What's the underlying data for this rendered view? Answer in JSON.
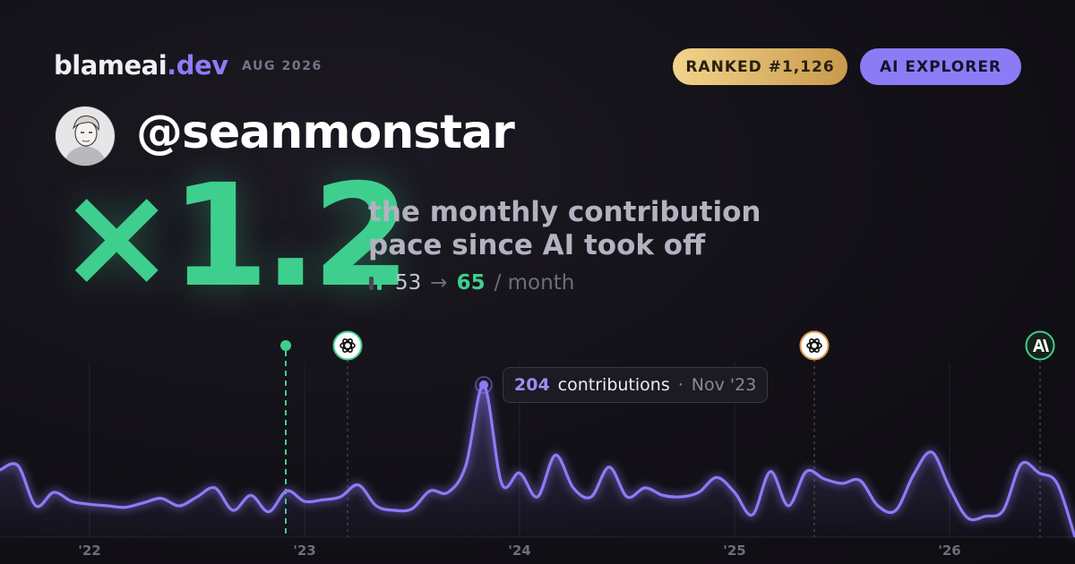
{
  "header": {
    "brand": "blameai",
    "brand_tld": ".dev",
    "period": "AUG 2026",
    "badges": [
      "RANKED #1,126",
      "AI EXPLORER"
    ]
  },
  "profile": {
    "username": "@seanmonstar"
  },
  "headline": {
    "multiplier": "×1.2",
    "description": [
      "the monthly contribution",
      "pace since AI took off"
    ],
    "pace": {
      "before": 53,
      "arrow": "→",
      "after": 65,
      "unit": "/ month"
    }
  },
  "chart_data": {
    "type": "line",
    "x": [
      "2021-08",
      "2021-09",
      "2021-10",
      "2021-11",
      "2021-12",
      "2022-01",
      "2022-02",
      "2022-03",
      "2022-04",
      "2022-05",
      "2022-06",
      "2022-07",
      "2022-08",
      "2022-09",
      "2022-10",
      "2022-11",
      "2022-12",
      "2023-01",
      "2023-02",
      "2023-03",
      "2023-04",
      "2023-05",
      "2023-06",
      "2023-07",
      "2023-08",
      "2023-09",
      "2023-10",
      "2023-11",
      "2023-12",
      "2024-01",
      "2024-02",
      "2024-03",
      "2024-04",
      "2024-05",
      "2024-06",
      "2024-07",
      "2024-08",
      "2024-09",
      "2024-10",
      "2024-11",
      "2024-12",
      "2025-01",
      "2025-02",
      "2025-03",
      "2025-04",
      "2025-05",
      "2025-06",
      "2025-07",
      "2025-08",
      "2025-09",
      "2025-10",
      "2025-11",
      "2025-12",
      "2026-01",
      "2026-02",
      "2026-03",
      "2026-04",
      "2026-05",
      "2026-06",
      "2026-07",
      "2026-08"
    ],
    "series": [
      {
        "color": "#8b7cf6",
        "values": [
          90,
          96,
          42,
          60,
          48,
          44,
          42,
          40,
          46,
          52,
          42,
          54,
          66,
          36,
          56,
          34,
          62,
          48,
          50,
          54,
          70,
          42,
          36,
          38,
          62,
          60,
          96,
          204,
          72,
          86,
          54,
          110,
          66,
          54,
          94,
          54,
          66,
          56,
          54,
          60,
          80,
          60,
          30,
          88,
          42,
          88,
          78,
          72,
          76,
          42,
          36,
          84,
          114,
          66,
          26,
          28,
          36,
          98,
          86,
          72,
          0
        ]
      }
    ],
    "xlim": [
      "2021-08",
      "2026-08"
    ],
    "xticks": [
      {
        "value": "2022-01",
        "label": "'22"
      },
      {
        "value": "2023-01",
        "label": "'23"
      },
      {
        "value": "2024-01",
        "label": "'24"
      },
      {
        "value": "2025-01",
        "label": "'25"
      },
      {
        "value": "2026-01",
        "label": "'26"
      }
    ],
    "ylim": [
      0,
      264
    ],
    "grid": true,
    "tooltip": {
      "label": "contributions",
      "separator": "·",
      "date": "Nov '23"
    }
  }
}
